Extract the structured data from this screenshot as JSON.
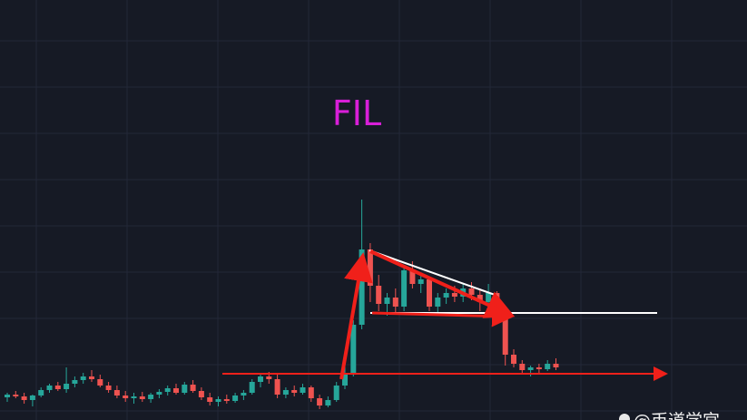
{
  "chart_data": {
    "type": "candlestick",
    "title": "FIL",
    "up_color": "#26a69a",
    "down_color": "#ef5350",
    "title_color": "#d81fd8",
    "ylim": [
      0,
      463
    ],
    "open": [
      25,
      28,
      26,
      22,
      27,
      33,
      38,
      34,
      40,
      44,
      48,
      45,
      38,
      33,
      27,
      24,
      26,
      23,
      28,
      31,
      35,
      30,
      39,
      32,
      25,
      20,
      23,
      21,
      27,
      30,
      42,
      48,
      45,
      28,
      33,
      30,
      36,
      24,
      16,
      22,
      38,
      52,
      105,
      188,
      148,
      128,
      135,
      125,
      165,
      150,
      155,
      125,
      135,
      140,
      136,
      145,
      138,
      130,
      140,
      122,
      72,
      62,
      55,
      58,
      56,
      62
    ],
    "high": [
      30,
      32,
      30,
      28,
      36,
      40,
      42,
      58,
      48,
      52,
      55,
      50,
      42,
      38,
      32,
      30,
      31,
      30,
      34,
      38,
      40,
      42,
      44,
      36,
      30,
      26,
      28,
      30,
      33,
      45,
      52,
      53,
      50,
      36,
      38,
      40,
      38,
      28,
      26,
      42,
      60,
      110,
      243,
      195,
      160,
      140,
      145,
      170,
      175,
      160,
      158,
      140,
      145,
      148,
      150,
      152,
      145,
      150,
      142,
      125,
      78,
      66,
      60,
      62,
      66,
      68
    ],
    "low": [
      20,
      24,
      18,
      15,
      25,
      30,
      32,
      30,
      36,
      40,
      42,
      36,
      30,
      24,
      20,
      18,
      20,
      19,
      24,
      27,
      28,
      28,
      30,
      22,
      16,
      15,
      18,
      19,
      22,
      28,
      36,
      40,
      24,
      24,
      26,
      28,
      20,
      12,
      14,
      20,
      34,
      48,
      100,
      130,
      120,
      115,
      118,
      120,
      145,
      140,
      120,
      115,
      128,
      130,
      130,
      132,
      120,
      125,
      118,
      60,
      58,
      50,
      48,
      52,
      54,
      55
    ],
    "close": [
      28,
      26,
      22,
      27,
      33,
      38,
      34,
      40,
      44,
      48,
      45,
      38,
      33,
      27,
      24,
      26,
      23,
      28,
      31,
      35,
      30,
      39,
      32,
      25,
      20,
      23,
      21,
      27,
      30,
      42,
      48,
      45,
      28,
      33,
      30,
      36,
      24,
      16,
      22,
      38,
      52,
      105,
      188,
      148,
      128,
      135,
      125,
      165,
      150,
      155,
      125,
      135,
      140,
      136,
      145,
      138,
      130,
      140,
      122,
      72,
      62,
      55,
      58,
      56,
      62,
      58
    ]
  },
  "watermark": "@币道学宫"
}
